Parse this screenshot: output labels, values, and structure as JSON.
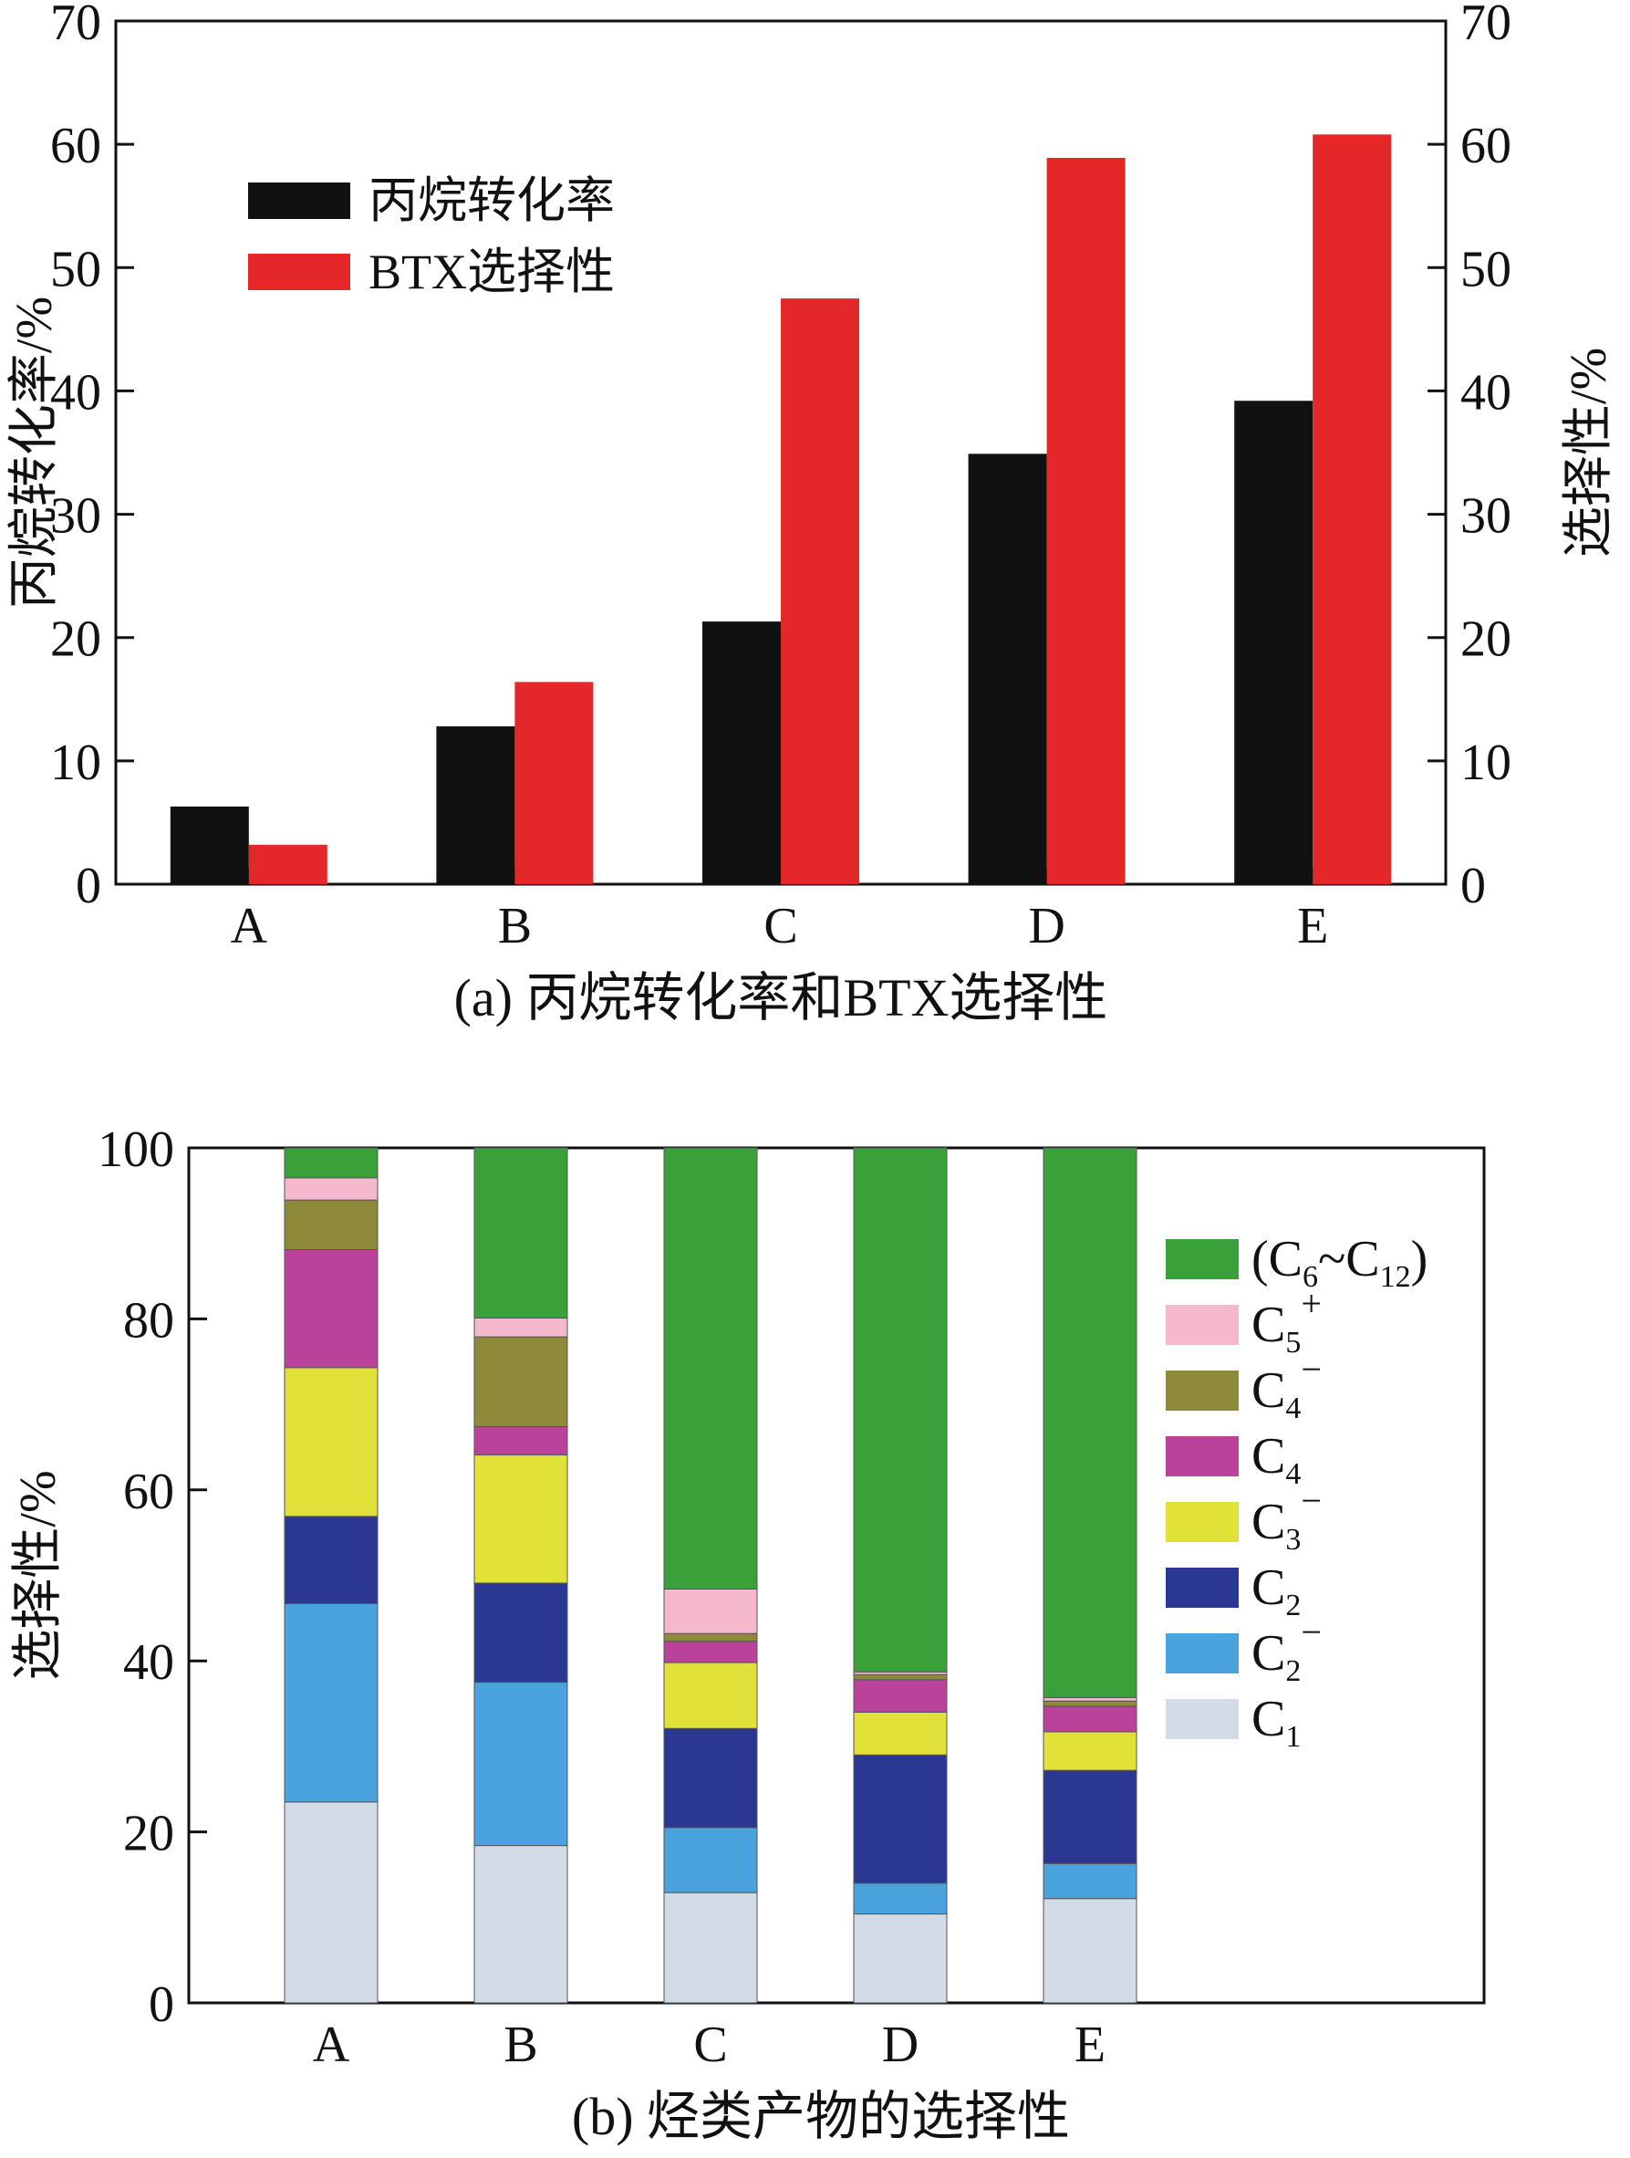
{
  "chart_data": [
    {
      "type": "bar",
      "panel": "a",
      "caption": "(a) 丙烷转化率和BTX选择性",
      "categories": [
        "A",
        "B",
        "C",
        "D",
        "E"
      ],
      "series": [
        {
          "name": "丙烷转化率",
          "axis": "left",
          "color": "#111111",
          "values": [
            6.3,
            12.8,
            21.3,
            34.9,
            39.2
          ]
        },
        {
          "name": "BTX选择性",
          "axis": "right",
          "color": "#e4282a",
          "values": [
            3.2,
            16.4,
            47.5,
            58.9,
            60.8
          ]
        }
      ],
      "ylabel": "丙烷转化率/%",
      "ylabel_right": "选择性/%",
      "ylim": [
        0,
        70
      ],
      "yticks": [
        0,
        10,
        20,
        30,
        40,
        50,
        60,
        70
      ],
      "legend_position": "top-left"
    },
    {
      "type": "stacked-bar",
      "panel": "b",
      "caption": "(b) 烃类产物的选择性",
      "categories": [
        "A",
        "B",
        "C",
        "D",
        "E"
      ],
      "series": [
        {
          "name": "C1",
          "label": "C",
          "sub": "1",
          "sup": "",
          "color": "#d3dbe6",
          "values": [
            23.5,
            18.4,
            12.9,
            10.4,
            12.2
          ]
        },
        {
          "name": "C2-",
          "label": "C",
          "sub": "2",
          "sup": "−",
          "color": "#4aa3dc",
          "values": [
            23.2,
            19.1,
            7.6,
            3.6,
            4.1
          ]
        },
        {
          "name": "C2",
          "label": "C",
          "sub": "2",
          "sup": "",
          "color": "#2b3891",
          "values": [
            10.2,
            11.6,
            11.6,
            15.0,
            10.9
          ]
        },
        {
          "name": "C3-",
          "label": "C",
          "sub": "3",
          "sup": "−",
          "color": "#e2e13a",
          "values": [
            17.4,
            15.0,
            7.7,
            5.0,
            4.5
          ]
        },
        {
          "name": "C4",
          "label": "C",
          "sub": "4",
          "sup": "",
          "color": "#b9439a",
          "values": [
            13.8,
            3.3,
            2.5,
            3.8,
            3.0
          ]
        },
        {
          "name": "C4-",
          "label": "C",
          "sub": "4",
          "sup": "−",
          "color": "#8e8a3a",
          "values": [
            5.8,
            10.5,
            0.9,
            0.6,
            0.6
          ]
        },
        {
          "name": "C5+",
          "label": "C",
          "sub": "5",
          "sup": "+",
          "color": "#f5b8cc",
          "values": [
            2.6,
            2.2,
            5.2,
            0.3,
            0.4
          ]
        },
        {
          "name": "(C6~C12)",
          "label": "(C",
          "sub": "6",
          "mid": "~C",
          "sub2": "12",
          "tail": ")",
          "sup": "",
          "color": "#3aa13a",
          "values": [
            3.5,
            19.9,
            51.6,
            61.3,
            64.3
          ]
        }
      ],
      "ylabel": "选择性/%",
      "ylim": [
        0,
        100
      ],
      "yticks": [
        0,
        20,
        40,
        60,
        80,
        100
      ],
      "legend_position": "right"
    }
  ]
}
